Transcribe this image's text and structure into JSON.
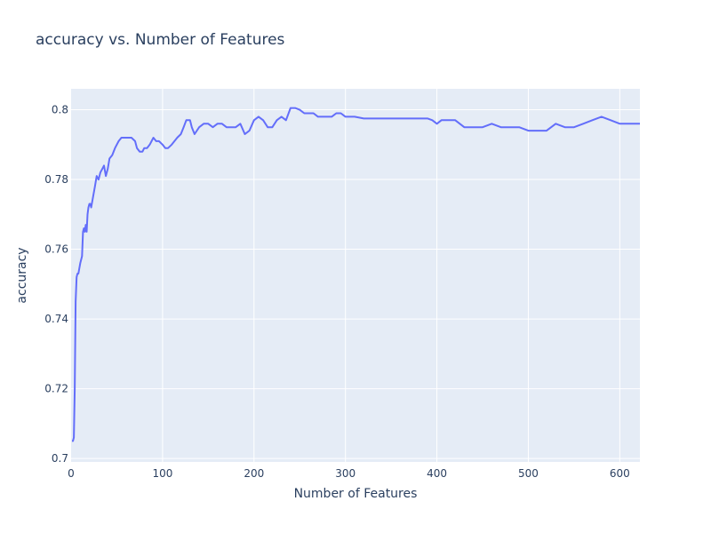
{
  "chart_data": {
    "type": "line",
    "title": "accuracy vs. Number of Features",
    "xlabel": "Number of Features",
    "ylabel": "accuracy",
    "xlim": [
      0,
      622
    ],
    "ylim": [
      0.699,
      0.806
    ],
    "xticks": [
      0,
      100,
      200,
      300,
      400,
      500,
      600
    ],
    "yticks": [
      0.7,
      0.72,
      0.74,
      0.76,
      0.78,
      0.8
    ],
    "ytick_labels": [
      "0.7",
      "0.72",
      "0.74",
      "0.76",
      "0.78",
      "0.8"
    ],
    "grid": true,
    "legend": "none",
    "colors": {
      "line": "#636efa",
      "plot_bg": "#e5ecf6",
      "grid": "#ffffff",
      "text": "#2a3f5f"
    },
    "series": [
      {
        "x": [
          1,
          2,
          3,
          4,
          5,
          6,
          7,
          8,
          10,
          12,
          13,
          14,
          15,
          16,
          17,
          18,
          19,
          20,
          21,
          22,
          24,
          26,
          28,
          30,
          32,
          34,
          36,
          38,
          40,
          42,
          45,
          48,
          52,
          55,
          58,
          62,
          66,
          70,
          72,
          75,
          78,
          80,
          83,
          86,
          90,
          93,
          96,
          100,
          103,
          106,
          110,
          113,
          116,
          120,
          123,
          126,
          128,
          130,
          132,
          135,
          140,
          145,
          150,
          155,
          160,
          165,
          170,
          175,
          180,
          185,
          190,
          195,
          200,
          205,
          210,
          215,
          220,
          225,
          230,
          235,
          240,
          245,
          250,
          255,
          260,
          265,
          270,
          275,
          280,
          285,
          290,
          295,
          300,
          310,
          320,
          330,
          340,
          350,
          360,
          370,
          380,
          390,
          395,
          400,
          405,
          410,
          420,
          430,
          440,
          450,
          460,
          470,
          480,
          490,
          500,
          510,
          520,
          530,
          540,
          550,
          560,
          570,
          580,
          590,
          600,
          610,
          622
        ],
        "y": [
          0.705,
          0.705,
          0.706,
          0.72,
          0.745,
          0.752,
          0.753,
          0.753,
          0.756,
          0.758,
          0.765,
          0.766,
          0.765,
          0.767,
          0.765,
          0.77,
          0.772,
          0.773,
          0.773,
          0.772,
          0.775,
          0.778,
          0.781,
          0.78,
          0.782,
          0.783,
          0.784,
          0.781,
          0.783,
          0.786,
          0.787,
          0.789,
          0.791,
          0.792,
          0.792,
          0.792,
          0.792,
          0.791,
          0.789,
          0.788,
          0.788,
          0.789,
          0.789,
          0.79,
          0.792,
          0.791,
          0.791,
          0.79,
          0.789,
          0.789,
          0.79,
          0.791,
          0.792,
          0.793,
          0.795,
          0.797,
          0.797,
          0.797,
          0.795,
          0.793,
          0.795,
          0.796,
          0.796,
          0.795,
          0.796,
          0.796,
          0.795,
          0.795,
          0.795,
          0.796,
          0.793,
          0.794,
          0.797,
          0.798,
          0.797,
          0.795,
          0.795,
          0.797,
          0.798,
          0.797,
          0.8005,
          0.8005,
          0.8,
          0.799,
          0.799,
          0.799,
          0.798,
          0.798,
          0.798,
          0.798,
          0.799,
          0.799,
          0.798,
          0.798,
          0.7975,
          0.7975,
          0.7975,
          0.7975,
          0.7975,
          0.7975,
          0.7975,
          0.7975,
          0.797,
          0.796,
          0.797,
          0.797,
          0.797,
          0.795,
          0.795,
          0.795,
          0.796,
          0.795,
          0.795,
          0.795,
          0.794,
          0.794,
          0.794,
          0.796,
          0.795,
          0.795,
          0.796,
          0.797,
          0.798,
          0.797,
          0.796,
          0.796,
          0.796
        ]
      }
    ]
  }
}
